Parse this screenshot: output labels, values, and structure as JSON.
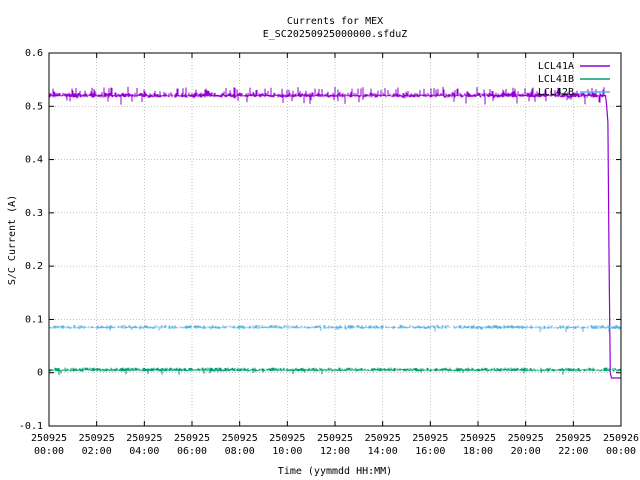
{
  "chart_data": {
    "type": "line",
    "title": "Currents for MEX",
    "subtitle": "E_SC20250925000000.sfduZ",
    "xlabel": "Time (yymmdd HH:MM)",
    "ylabel": "S/C Current (A)",
    "xlim": [
      0,
      24
    ],
    "ylim": [
      -0.1,
      0.6
    ],
    "grid": true,
    "legend_position": "top-right",
    "x_ticks": [
      {
        "x": 0,
        "date": "250925",
        "time": "00:00"
      },
      {
        "x": 2,
        "date": "250925",
        "time": "02:00"
      },
      {
        "x": 4,
        "date": "250925",
        "time": "04:00"
      },
      {
        "x": 6,
        "date": "250925",
        "time": "06:00"
      },
      {
        "x": 8,
        "date": "250925",
        "time": "08:00"
      },
      {
        "x": 10,
        "date": "250925",
        "time": "10:00"
      },
      {
        "x": 12,
        "date": "250925",
        "time": "12:00"
      },
      {
        "x": 14,
        "date": "250925",
        "time": "14:00"
      },
      {
        "x": 16,
        "date": "250925",
        "time": "16:00"
      },
      {
        "x": 18,
        "date": "250925",
        "time": "18:00"
      },
      {
        "x": 20,
        "date": "250925",
        "time": "20:00"
      },
      {
        "x": 22,
        "date": "250925",
        "time": "22:00"
      },
      {
        "x": 24,
        "date": "250926",
        "time": "00:00"
      }
    ],
    "y_ticks": [
      -0.1,
      0,
      0.1,
      0.2,
      0.3,
      0.4,
      0.5,
      0.6
    ],
    "y_tick_labels": [
      "-0.1",
      "0",
      "0.1",
      "0.2",
      "0.3",
      "0.4",
      "0.5",
      "0.6"
    ],
    "series": [
      {
        "name": "LCL41A",
        "color": "#9400d3",
        "x": [
          0,
          0.5,
          1,
          1.5,
          2,
          2.5,
          3,
          3.5,
          4,
          4.5,
          5,
          5.5,
          6,
          6.5,
          7,
          7.5,
          8,
          8.5,
          9,
          9.5,
          10,
          10.5,
          11,
          11.5,
          12,
          12.5,
          13,
          13.5,
          14,
          14.5,
          15,
          15.5,
          16,
          16.5,
          17,
          17.5,
          18,
          18.5,
          19,
          19.5,
          20,
          20.5,
          21,
          21.5,
          22,
          22.5,
          23,
          23.2,
          23.35,
          23.4,
          23.45,
          23.5,
          23.55,
          23.6,
          24
        ],
        "y": [
          0.52,
          0.53,
          0.52,
          0.52,
          0.525,
          0.52,
          0.52,
          0.53,
          0.52,
          0.52,
          0.525,
          0.52,
          0.52,
          0.53,
          0.52,
          0.52,
          0.52,
          0.525,
          0.52,
          0.52,
          0.52,
          0.53,
          0.52,
          0.52,
          0.525,
          0.52,
          0.52,
          0.52,
          0.53,
          0.52,
          0.52,
          0.52,
          0.51,
          0.52,
          0.52,
          0.525,
          0.52,
          0.52,
          0.53,
          0.52,
          0.52,
          0.52,
          0.52,
          0.525,
          0.52,
          0.52,
          0.52,
          0.52,
          0.52,
          0.5,
          0.47,
          0.2,
          0.0,
          -0.01,
          -0.01
        ]
      },
      {
        "name": "LCL41B",
        "color": "#009e73",
        "x": [
          0,
          24
        ],
        "y": [
          0.005,
          0.005
        ]
      },
      {
        "name": "LCL42B",
        "color": "#56b4e9",
        "x": [
          0,
          24
        ],
        "y": [
          0.085,
          0.085
        ]
      }
    ]
  }
}
